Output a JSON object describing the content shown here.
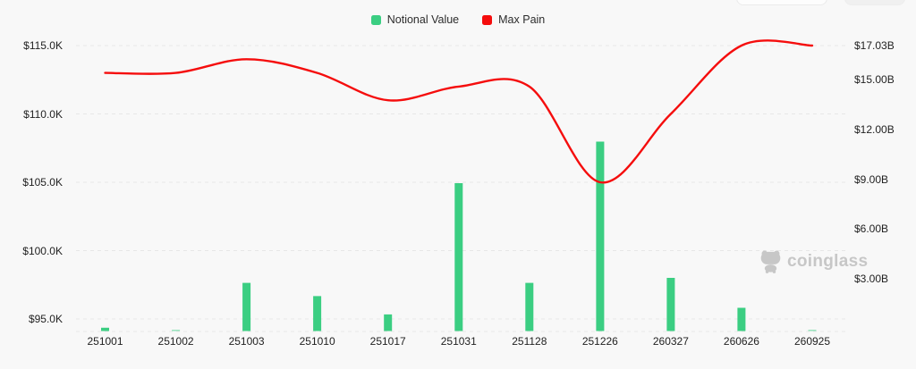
{
  "legend": {
    "notional_label": "Notional Value",
    "max_pain_label": "Max Pain"
  },
  "watermark": {
    "text": "coinglass"
  },
  "colors": {
    "background": "#f8f8f8",
    "bar": "#3bce82",
    "line": "#f50d0d",
    "grid": "#e7e7e7",
    "axis_text": "#1f1f1f",
    "watermark": "#c7c7c7"
  },
  "chart_data": {
    "type": "bar",
    "subtype": "bar + smooth line combo (options open interest style)",
    "categories": [
      "251001",
      "251002",
      "251003",
      "251010",
      "251017",
      "251031",
      "251128",
      "251226",
      "260327",
      "260626",
      "260925"
    ],
    "series": [
      {
        "name": "Notional Value",
        "type": "bar",
        "y_axis": "right",
        "unit": "USD billions",
        "color": "#3bce82",
        "values": [
          0.2,
          0.05,
          2.9,
          2.1,
          1.0,
          8.9,
          2.9,
          11.4,
          3.2,
          1.4,
          0.05
        ]
      },
      {
        "name": "Max Pain",
        "type": "line",
        "y_axis": "left",
        "unit": "USD thousands",
        "color": "#f50d0d",
        "smooth": true,
        "values": [
          113.0,
          113.0,
          114.0,
          113.0,
          111.0,
          112.0,
          112.0,
          105.0,
          110.0,
          115.0,
          115.0
        ]
      }
    ],
    "left_axis": {
      "range": [
        95,
        115
      ],
      "ticks": [
        {
          "label": "$115.0K",
          "value": 115
        },
        {
          "label": "$110.0K",
          "value": 110
        },
        {
          "label": "$105.0K",
          "value": 105
        },
        {
          "label": "$100.0K",
          "value": 100
        },
        {
          "label": "$95.0K",
          "value": 95
        }
      ]
    },
    "right_axis": {
      "range": [
        0,
        17.03
      ],
      "ticks": [
        {
          "label": "$17.03B",
          "value": 17.03
        },
        {
          "label": "$15.00B",
          "value": 15
        },
        {
          "label": "$12.00B",
          "value": 12
        },
        {
          "label": "$9.00B",
          "value": 9
        },
        {
          "label": "$6.00B",
          "value": 6
        },
        {
          "label": "$3.00B",
          "value": 3
        }
      ]
    },
    "grid": "horizontal dashed gridlines",
    "legend_position": "top center"
  }
}
